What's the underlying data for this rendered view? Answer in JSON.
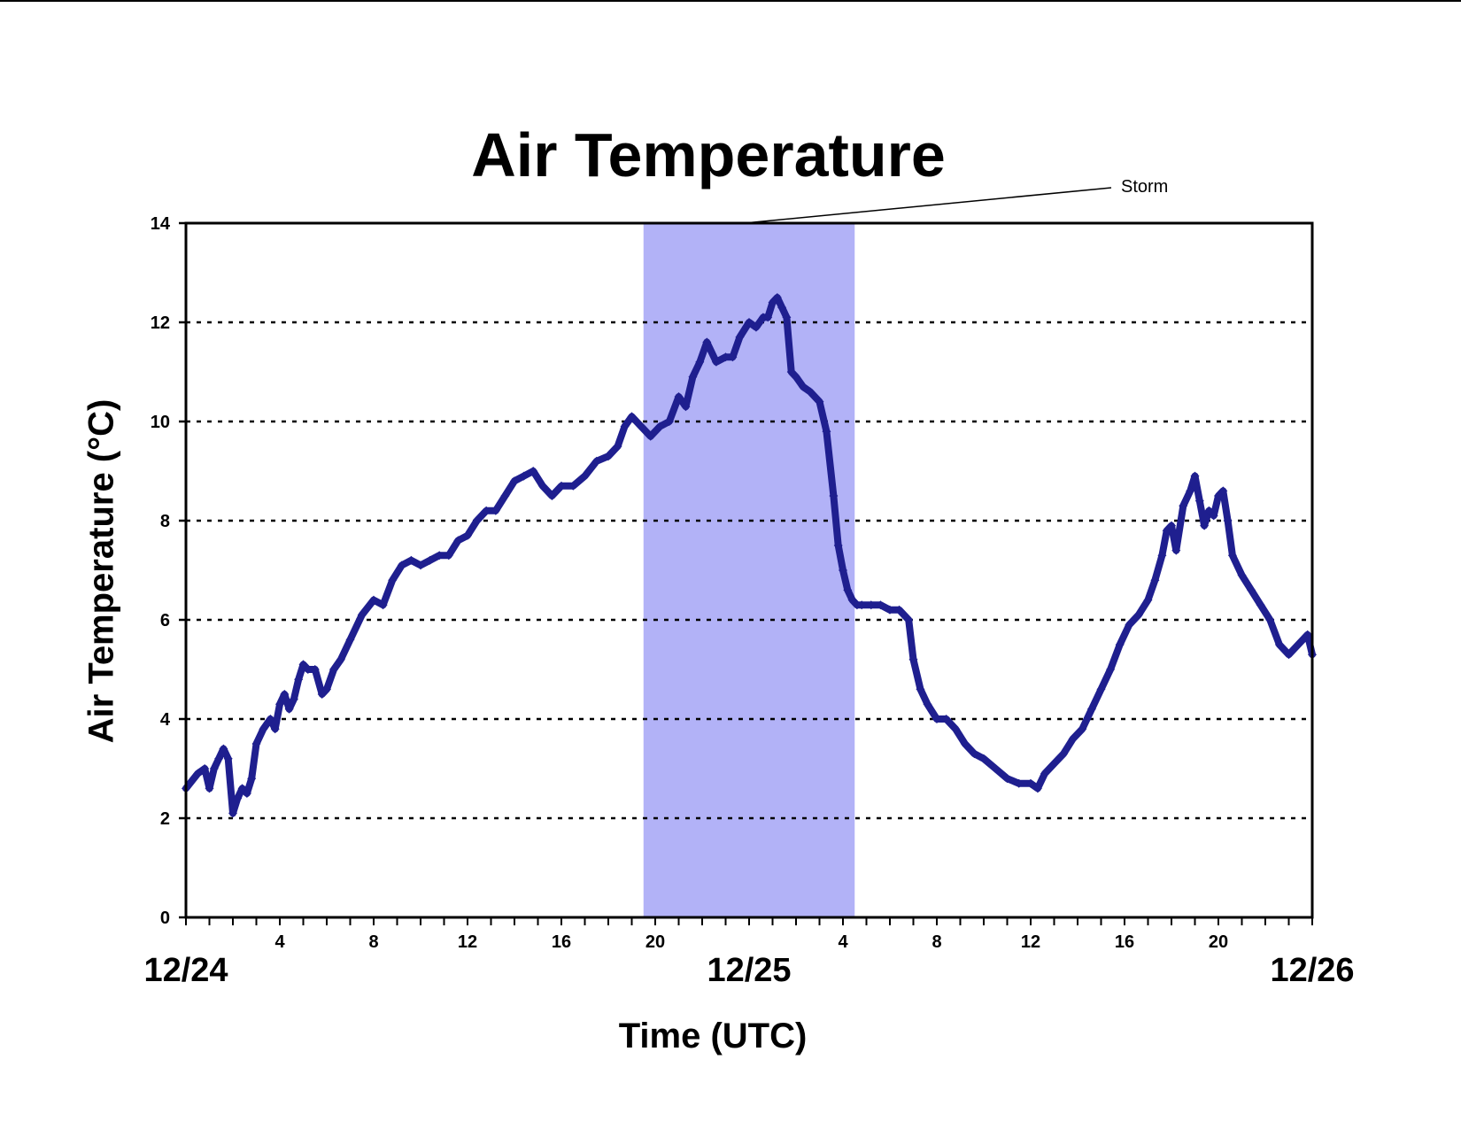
{
  "chart_data": {
    "type": "scatter",
    "title": "Air Temperature",
    "xlabel": "Time (UTC)",
    "ylabel": "Air Temperature (°C)",
    "ylim": [
      0,
      14
    ],
    "yticks": [
      0,
      2,
      4,
      6,
      8,
      10,
      12,
      14
    ],
    "xlim_hours": [
      0,
      48
    ],
    "hour_tick_labels": [
      {
        "hour": 4,
        "label": "4"
      },
      {
        "hour": 8,
        "label": "8"
      },
      {
        "hour": 12,
        "label": "12"
      },
      {
        "hour": 16,
        "label": "16"
      },
      {
        "hour": 20,
        "label": "20"
      },
      {
        "hour": 28,
        "label": "4"
      },
      {
        "hour": 32,
        "label": "8"
      },
      {
        "hour": 36,
        "label": "12"
      },
      {
        "hour": 40,
        "label": "16"
      },
      {
        "hour": 44,
        "label": "20"
      }
    ],
    "date_labels": [
      {
        "hour": 0,
        "label": "12/24"
      },
      {
        "hour": 24,
        "label": "12/25"
      },
      {
        "hour": 48,
        "label": "12/26"
      }
    ],
    "grid": "horizontal dotted",
    "storm": {
      "label": "Storm",
      "start_hour": 19.5,
      "end_hour": 28.5,
      "color": "#b2b2f7"
    },
    "series_color": "#1f1f8f",
    "series": [
      {
        "x_hours": [
          0,
          0.5,
          0.8,
          1.0,
          1.2,
          1.4,
          1.6,
          1.8,
          2.0,
          2.2,
          2.4,
          2.6,
          2.8,
          3.0,
          3.3,
          3.6,
          3.8,
          4.0,
          4.2,
          4.4,
          4.6,
          4.8,
          5.0,
          5.2,
          5.5,
          5.8,
          6.0,
          6.3,
          6.6,
          7.0,
          7.5,
          8.0,
          8.4,
          8.8,
          9.2,
          9.6,
          10.0,
          10.4,
          10.8,
          11.2,
          11.6,
          12.0,
          12.4,
          12.8,
          13.2,
          13.6,
          14.0,
          14.4,
          14.8,
          15.2,
          15.6,
          16.0,
          16.5,
          17.0,
          17.5,
          18.0,
          18.4,
          18.7,
          19.0,
          19.4,
          19.8,
          20.2,
          20.6,
          21.0,
          21.3,
          21.6,
          21.9,
          22.2,
          22.6,
          23.0,
          23.3,
          23.6,
          24.0,
          24.3,
          24.6,
          24.8,
          25.0,
          25.2,
          25.4,
          25.6,
          25.8,
          26.0,
          26.3,
          26.6,
          27.0,
          27.3,
          27.6,
          27.8,
          28.0,
          28.2,
          28.4,
          28.6,
          28.8,
          29.2,
          29.6,
          30.0,
          30.4,
          30.8,
          31.0,
          31.3,
          31.6,
          32.0,
          32.4,
          32.8,
          33.2,
          33.6,
          34.0,
          34.5,
          35.0,
          35.5,
          36.0,
          36.3,
          36.6,
          37.0,
          37.4,
          37.8,
          38.2,
          38.6,
          39.0,
          39.4,
          39.8,
          40.2,
          40.6,
          41.0,
          41.3,
          41.6,
          41.8,
          42.0,
          42.2,
          42.5,
          42.8,
          43.0,
          43.2,
          43.4,
          43.6,
          43.8,
          44.0,
          44.2,
          44.4,
          44.6,
          45.0,
          45.4,
          45.8,
          46.2,
          46.6,
          47.0,
          47.4,
          47.8,
          48.0
        ],
        "y": [
          2.6,
          2.9,
          3.0,
          2.6,
          3.0,
          3.2,
          3.4,
          3.2,
          2.1,
          2.4,
          2.6,
          2.5,
          2.8,
          3.5,
          3.8,
          4.0,
          3.8,
          4.3,
          4.5,
          4.2,
          4.4,
          4.8,
          5.1,
          5.0,
          5.0,
          4.5,
          4.6,
          5.0,
          5.2,
          5.6,
          6.1,
          6.4,
          6.3,
          6.8,
          7.1,
          7.2,
          7.1,
          7.2,
          7.3,
          7.3,
          7.6,
          7.7,
          8.0,
          8.2,
          8.2,
          8.5,
          8.8,
          8.9,
          9.0,
          8.7,
          8.5,
          8.7,
          8.7,
          8.9,
          9.2,
          9.3,
          9.5,
          9.9,
          10.1,
          9.9,
          9.7,
          9.9,
          10.0,
          10.5,
          10.3,
          10.9,
          11.2,
          11.6,
          11.2,
          11.3,
          11.3,
          11.7,
          12.0,
          11.9,
          12.1,
          12.1,
          12.4,
          12.5,
          12.3,
          12.1,
          11.0,
          10.9,
          10.7,
          10.6,
          10.4,
          9.8,
          8.5,
          7.5,
          7.0,
          6.6,
          6.4,
          6.3,
          6.3,
          6.3,
          6.3,
          6.2,
          6.2,
          6.0,
          5.2,
          4.6,
          4.3,
          4.0,
          4.0,
          3.8,
          3.5,
          3.3,
          3.2,
          3.0,
          2.8,
          2.7,
          2.7,
          2.6,
          2.9,
          3.1,
          3.3,
          3.6,
          3.8,
          4.2,
          4.6,
          5.0,
          5.5,
          5.9,
          6.1,
          6.4,
          6.8,
          7.3,
          7.8,
          7.9,
          7.4,
          8.3,
          8.6,
          8.9,
          8.4,
          7.9,
          8.2,
          8.1,
          8.5,
          8.6,
          8.0,
          7.3,
          6.9,
          6.6,
          6.3,
          6.0,
          5.5,
          5.3,
          5.5,
          5.7,
          5.3
        ]
      }
    ]
  }
}
